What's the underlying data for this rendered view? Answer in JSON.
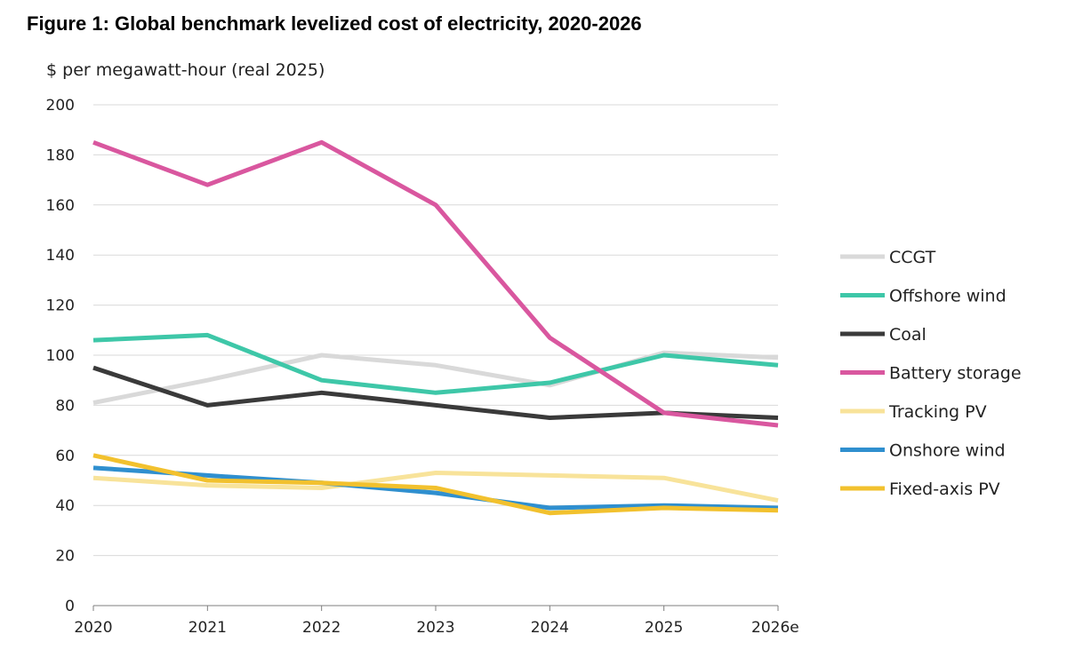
{
  "chart_data": {
    "type": "line",
    "title": "Figure 1: Global benchmark levelized cost of electricity, 2020-2026",
    "ylabel": "$ per megawatt-hour (real 2025)",
    "xlabel": "",
    "categories": [
      "2020",
      "2021",
      "2022",
      "2023",
      "2024",
      "2025",
      "2026e"
    ],
    "ylim": [
      0,
      200
    ],
    "yticks": [
      0,
      20,
      40,
      60,
      80,
      100,
      120,
      140,
      160,
      180,
      200
    ],
    "grid": true,
    "legend_position": "right",
    "series": [
      {
        "name": "CCGT",
        "color": "#d9d9d9",
        "values": [
          81,
          90,
          100,
          96,
          88,
          101,
          99
        ]
      },
      {
        "name": "Offshore wind",
        "color": "#3ec7a8",
        "values": [
          106,
          108,
          90,
          85,
          89,
          100,
          96
        ]
      },
      {
        "name": "Coal",
        "color": "#3a3a3a",
        "values": [
          95,
          80,
          85,
          80,
          75,
          77,
          75
        ]
      },
      {
        "name": "Battery storage",
        "color": "#d9579f",
        "values": [
          185,
          168,
          185,
          160,
          107,
          77,
          72
        ]
      },
      {
        "name": "Tracking PV",
        "color": "#f8e39a",
        "values": [
          51,
          48,
          47,
          53,
          52,
          51,
          42
        ]
      },
      {
        "name": "Onshore wind",
        "color": "#2f8fcf",
        "values": [
          55,
          52,
          49,
          45,
          39,
          40,
          39
        ]
      },
      {
        "name": "Fixed-axis PV",
        "color": "#f2c12e",
        "values": [
          60,
          50,
          49,
          47,
          37,
          39,
          38
        ]
      }
    ]
  }
}
